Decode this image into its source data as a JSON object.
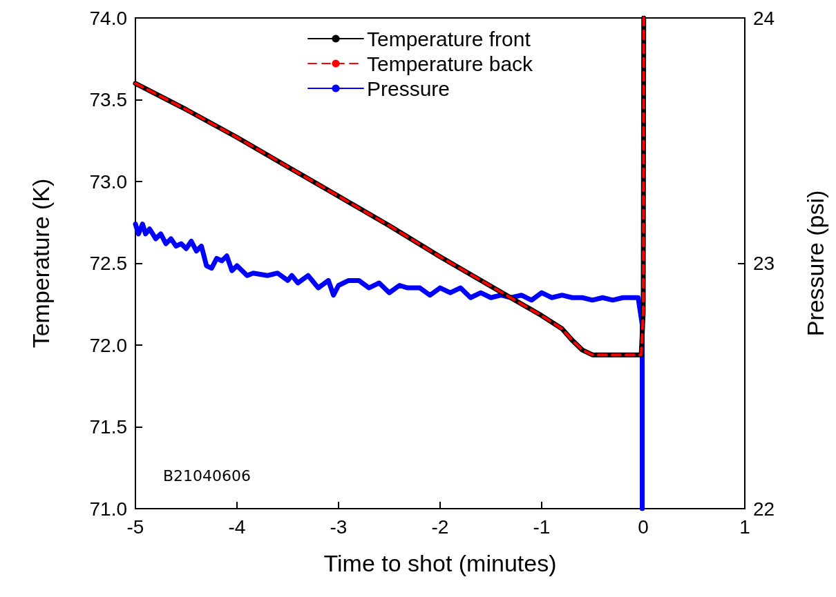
{
  "chart_data": {
    "type": "line",
    "xlabel": "Time to shot (minutes)",
    "ylabel": "Temperature (K)",
    "y2label": "Pressure (psi)",
    "xlim": [
      -5,
      1
    ],
    "xticks": [
      -5,
      -4,
      -3,
      -2,
      -1,
      0,
      1
    ],
    "ylim": [
      71,
      74
    ],
    "yticks": [
      {
        "value": 71,
        "label": "71.0"
      },
      71.5,
      {
        "value": 72,
        "label": "72.0"
      },
      72.5,
      {
        "value": 73,
        "label": "73.0"
      },
      73.5,
      {
        "value": 74,
        "label": "74.0"
      }
    ],
    "y2lim": [
      22,
      24
    ],
    "y2ticks": [
      22,
      23,
      24
    ],
    "grid": false,
    "legend": "top",
    "marker": "none",
    "annotations": [
      "B21040606"
    ],
    "series": [
      {
        "name": "Temperature front",
        "color": "#000000",
        "line_style": "solid",
        "x": [
          -5,
          -4.5,
          -4,
          -3.5,
          -3,
          -2.5,
          -2,
          -1.5,
          -1,
          -0.8,
          -0.7,
          -0.6,
          -0.5,
          -0.3,
          -0.02,
          0,
          0.005
        ],
        "values": [
          73.6,
          73.44,
          73.27,
          73.09,
          72.91,
          72.73,
          72.54,
          72.36,
          72.18,
          72.1,
          72.03,
          71.97,
          71.94,
          71.94,
          71.94,
          72.2,
          74
        ]
      },
      {
        "name": "Temperature back",
        "color": "#ff0000",
        "line_style": "dashed",
        "x": [
          -5,
          -4.5,
          -4,
          -3.5,
          -3,
          -2.5,
          -2,
          -1.5,
          -1,
          -0.8,
          -0.7,
          -0.6,
          -0.5,
          -0.3,
          -0.02,
          0,
          0.005
        ],
        "values": [
          73.6,
          73.44,
          73.27,
          73.09,
          72.91,
          72.73,
          72.54,
          72.36,
          72.18,
          72.1,
          72.03,
          71.97,
          71.94,
          71.94,
          71.94,
          72.2,
          74
        ]
      },
      {
        "name": "Pressure",
        "color": "#0000ff",
        "line_style": "solid",
        "axis": "y2",
        "x": [
          -5,
          -4.97,
          -4.93,
          -4.9,
          -4.86,
          -4.8,
          -4.75,
          -4.7,
          -4.65,
          -4.6,
          -4.55,
          -4.5,
          -4.45,
          -4.4,
          -4.35,
          -4.3,
          -4.25,
          -4.2,
          -4.15,
          -4.1,
          -4.05,
          -4.0,
          -3.9,
          -3.84,
          -3.7,
          -3.6,
          -3.5,
          -3.46,
          -3.4,
          -3.3,
          -3.2,
          -3.1,
          -3.05,
          -3.0,
          -2.9,
          -2.8,
          -2.7,
          -2.6,
          -2.5,
          -2.4,
          -2.32,
          -2.2,
          -2.1,
          -2.0,
          -1.9,
          -1.8,
          -1.7,
          -1.6,
          -1.5,
          -1.4,
          -1.3,
          -1.2,
          -1.1,
          -1.0,
          -0.9,
          -0.8,
          -0.7,
          -0.6,
          -0.5,
          -0.4,
          -0.3,
          -0.2,
          -0.1,
          -0.05,
          -0.01,
          -0.01
        ],
        "values": [
          23.16,
          23.12,
          23.16,
          23.12,
          23.14,
          23.1,
          23.12,
          23.08,
          23.1,
          23.07,
          23.08,
          23.06,
          23.09,
          23.05,
          23.07,
          22.99,
          22.98,
          23.02,
          23.01,
          23.03,
          22.97,
          22.99,
          22.95,
          22.96,
          22.95,
          22.96,
          22.93,
          22.95,
          22.92,
          22.95,
          22.9,
          22.93,
          22.87,
          22.91,
          22.93,
          22.93,
          22.9,
          22.92,
          22.88,
          22.91,
          22.9,
          22.9,
          22.87,
          22.9,
          22.88,
          22.9,
          22.86,
          22.88,
          22.86,
          22.87,
          22.86,
          22.87,
          22.85,
          22.88,
          22.86,
          22.87,
          22.86,
          22.86,
          22.85,
          22.86,
          22.85,
          22.86,
          22.86,
          22.86,
          22.75,
          22
        ]
      }
    ]
  }
}
